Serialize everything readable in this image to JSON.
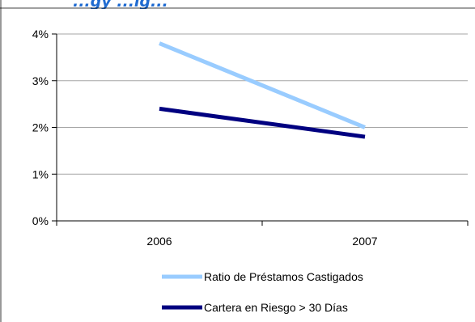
{
  "chart_data": {
    "type": "line",
    "title": "",
    "xlabel": "",
    "ylabel": "",
    "categories": [
      "2006",
      "2007"
    ],
    "ylim": [
      0,
      0.04
    ],
    "yticks": [
      0,
      0.01,
      0.02,
      0.03,
      0.04
    ],
    "ytick_labels": [
      "0%",
      "1%",
      "2%",
      "3%",
      "4%"
    ],
    "grid": true,
    "legend_position": "bottom",
    "series": [
      {
        "name": "Ratio de Préstamos Castigados",
        "values": [
          0.038,
          0.02
        ],
        "color": "#99ccff"
      },
      {
        "name": "Cartera en Riesgo > 30 Días",
        "values": [
          0.024,
          0.018
        ],
        "color": "#000080"
      }
    ]
  },
  "partial_title": "...gy ...ig..."
}
